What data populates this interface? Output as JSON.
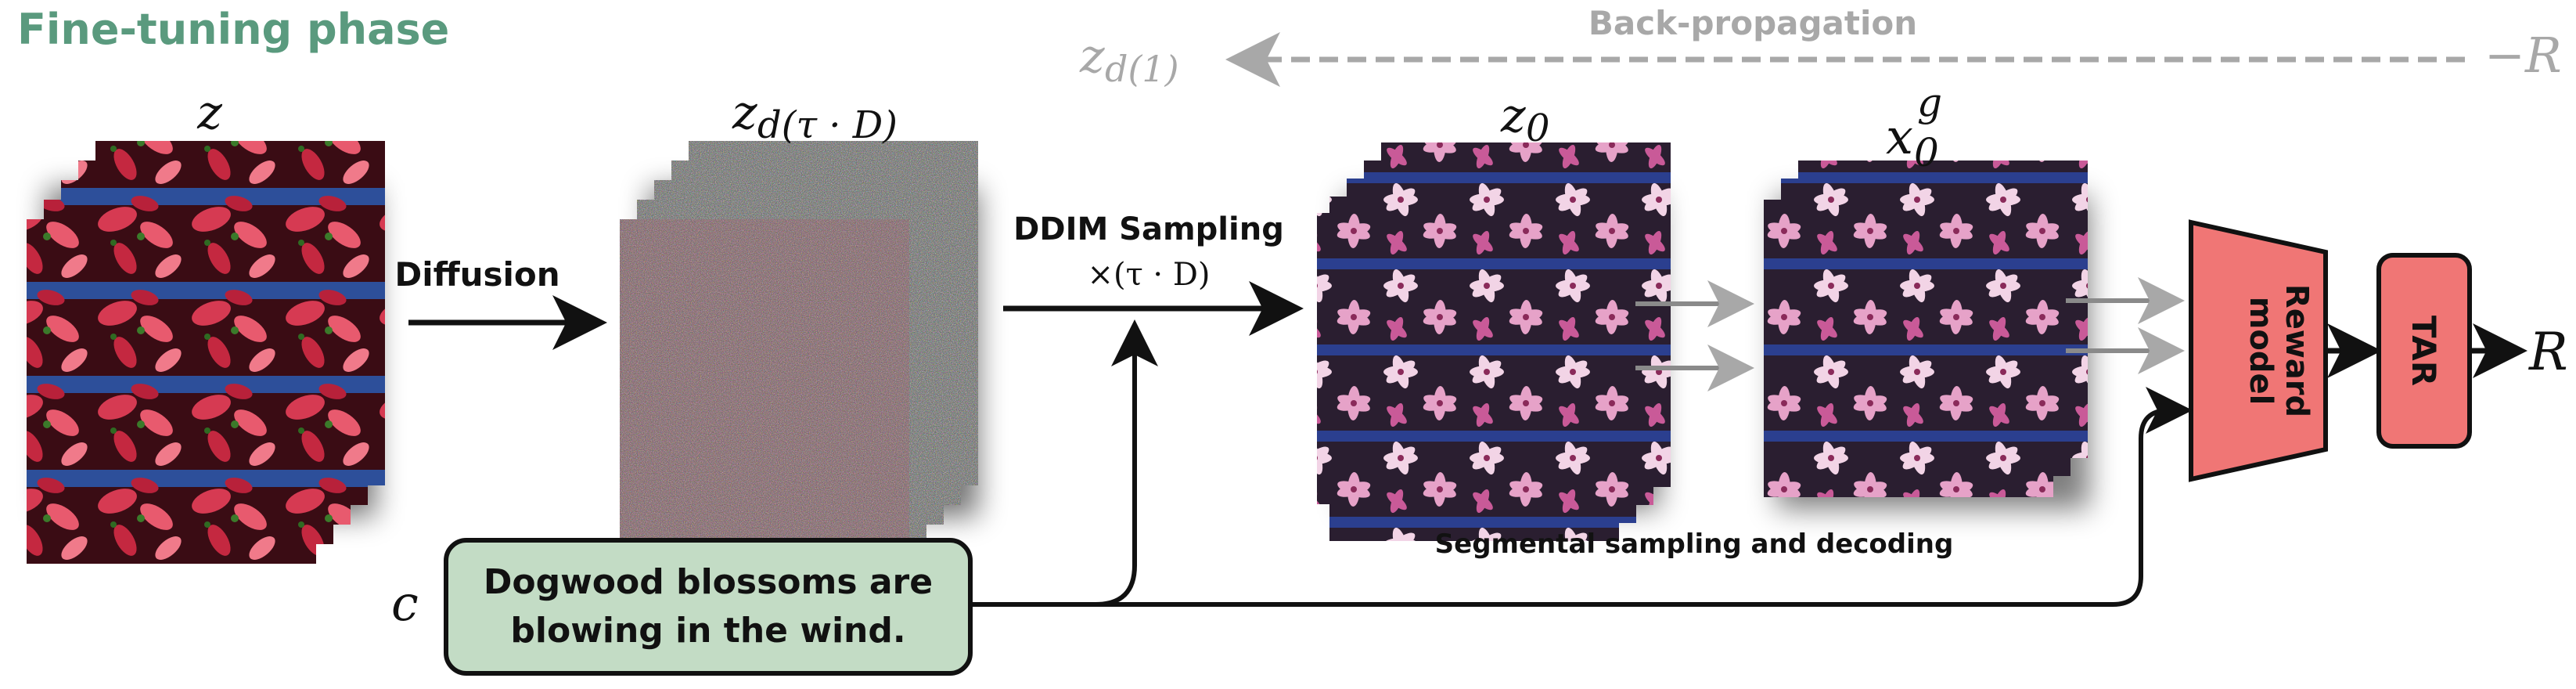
{
  "title": "Fine-tuning phase",
  "colors": {
    "title_green": "#5a9a7e",
    "prompt_fill": "#c3dcc5",
    "reward_fill": "#f07675",
    "gray_arrow": "#a8a8a8",
    "black": "#111111"
  },
  "backprop": {
    "label": "Back-propagation",
    "end_symbol": "−R",
    "start_sym": "z",
    "start_sub": "d(1)"
  },
  "stacks": {
    "z": {
      "sym": "z",
      "sub": ""
    },
    "z_noisy": {
      "sym": "z",
      "sub": "d(τ · D)"
    },
    "z0": {
      "sym": "z",
      "sub": "0"
    },
    "x0g": {
      "sym": "x",
      "sub": "0",
      "sup": "g"
    }
  },
  "labels": {
    "diffusion": "Diffusion",
    "ddim_line1": "DDIM Sampling",
    "ddim_line2": "×(τ · D)",
    "segmental": "Segmental sampling and decoding",
    "c_symbol": "c",
    "prompt_line1": "Dogwood blossoms are",
    "prompt_line2": "blowing in the wind.",
    "reward_line1": "Reward",
    "reward_line2": "model",
    "tar": "TAR",
    "r_output": "R"
  },
  "icons": [
    "flower-photo-icon",
    "noise-photo-icon",
    "arrow-icon"
  ]
}
